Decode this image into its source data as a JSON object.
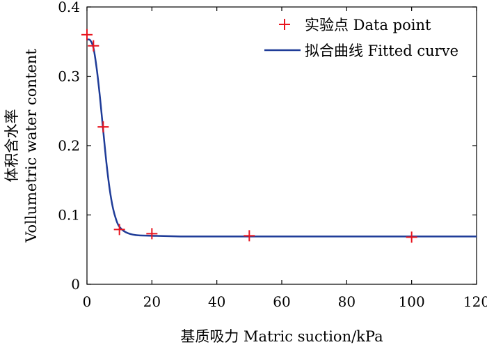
{
  "chart_data": {
    "type": "scatter",
    "title": "",
    "xlabel": "基质吸力 Matric suction/kPa",
    "ylabel_cn": "体积含水率",
    "ylabel_en": "Vollumetric water content",
    "xlim": [
      0,
      120
    ],
    "ylim": [
      0,
      0.4
    ],
    "x_ticks": [
      0,
      20,
      40,
      60,
      80,
      100,
      120
    ],
    "x_tick_labels": [
      "0",
      "20",
      "40",
      "60",
      "80",
      "100",
      "120"
    ],
    "y_ticks": [
      0,
      0.1,
      0.2,
      0.3,
      0.4
    ],
    "y_tick_labels": [
      "0",
      "0.1",
      "0.2",
      "0.3",
      "0.4"
    ],
    "grid": false,
    "legend": {
      "position": "top-right",
      "entries": [
        {
          "label": "实验点 Data point",
          "marker": "plus",
          "color": "#e8141e"
        },
        {
          "label": "拟合曲线 Fitted curve",
          "marker": "line",
          "color": "#1f3c98"
        }
      ]
    },
    "series": [
      {
        "name": "实验点 Data point",
        "kind": "markers",
        "color": "#e8141e",
        "x": [
          0,
          2,
          5,
          10,
          20,
          50,
          100
        ],
        "y": [
          0.36,
          0.344,
          0.227,
          0.079,
          0.073,
          0.07,
          0.068
        ]
      },
      {
        "name": "拟合曲线 Fitted curve",
        "kind": "line",
        "color": "#1f3c98",
        "x": [
          0,
          1,
          2,
          3,
          4,
          5,
          6,
          7,
          8,
          9,
          10,
          12,
          15,
          20,
          30,
          50,
          80,
          100,
          120
        ],
        "y": [
          0.353,
          0.352,
          0.341,
          0.311,
          0.27,
          0.222,
          0.175,
          0.137,
          0.11,
          0.093,
          0.083,
          0.075,
          0.071,
          0.07,
          0.069,
          0.069,
          0.069,
          0.069,
          0.069
        ]
      }
    ]
  }
}
